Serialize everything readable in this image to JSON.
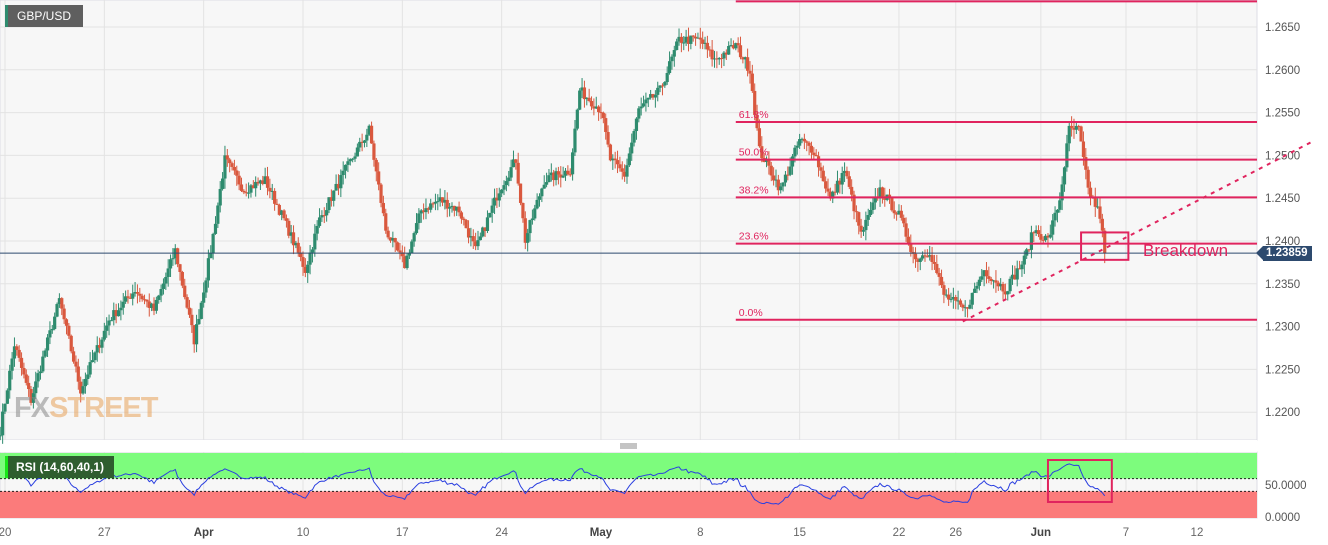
{
  "symbol": "GBP/USD",
  "colors": {
    "up": "#2e8b6e",
    "down": "#d9583e",
    "fib": "#e0245e",
    "price_line": "#2d4a6e",
    "rsi_line": "#2a3fe0",
    "rsi_over": "#7dfc7d",
    "rsi_under": "#fb7b7b"
  },
  "chart_data": {
    "type": "candlestick",
    "interval_hint": "4h",
    "y_ticks": [
      "1.2650",
      "1.2600",
      "1.2550",
      "1.2500",
      "1.2450",
      "1.2400",
      "1.2350",
      "1.2300",
      "1.2250",
      "1.2200"
    ],
    "ylim": [
      1.216,
      1.268
    ],
    "x_ticks": [
      {
        "label": "20",
        "date": "2023-03-20"
      },
      {
        "label": "27",
        "date": "2023-03-27"
      },
      {
        "label": "Apr",
        "date": "2023-04-03",
        "bold": true
      },
      {
        "label": "10",
        "date": "2023-04-10"
      },
      {
        "label": "17",
        "date": "2023-04-17"
      },
      {
        "label": "24",
        "date": "2023-04-24"
      },
      {
        "label": "May",
        "date": "2023-05-01",
        "bold": true
      },
      {
        "label": "8",
        "date": "2023-05-08"
      },
      {
        "label": "15",
        "date": "2023-05-15"
      },
      {
        "label": "22",
        "date": "2023-05-22"
      },
      {
        "label": "26",
        "date": "2023-05-26"
      },
      {
        "label": "Jun",
        "date": "2023-06-01",
        "bold": true
      },
      {
        "label": "7",
        "date": "2023-06-07"
      },
      {
        "label": "12",
        "date": "2023-06-12"
      }
    ],
    "price_path": [
      [
        "2023-03-19T16:00",
        1.2179
      ],
      [
        "2023-03-20T16:00",
        1.2279
      ],
      [
        "2023-03-21T20:00",
        1.2214
      ],
      [
        "2023-03-23T20:00",
        1.2331
      ],
      [
        "2023-03-25T08:00",
        1.2226
      ],
      [
        "2023-03-27T08:00",
        1.2308
      ],
      [
        "2023-03-29T04:00",
        1.2343
      ],
      [
        "2023-03-30T12:00",
        1.2319
      ],
      [
        "2023-04-01T00:00",
        1.2389
      ],
      [
        "2023-04-02T08:00",
        1.2284
      ],
      [
        "2023-04-03T12:00",
        1.2389
      ],
      [
        "2023-04-04T12:00",
        1.2495
      ],
      [
        "2023-04-05T20:00",
        1.246
      ],
      [
        "2023-04-07T08:00",
        1.2471
      ],
      [
        "2023-04-08T16:00",
        1.2425
      ],
      [
        "2023-04-10T04:00",
        1.2366
      ],
      [
        "2023-04-11T04:00",
        1.2425
      ],
      [
        "2023-04-13T00:00",
        1.2483
      ],
      [
        "2023-04-14T16:00",
        1.253
      ],
      [
        "2023-04-15T20:00",
        1.2413
      ],
      [
        "2023-04-17T04:00",
        1.2372
      ],
      [
        "2023-04-18T08:00",
        1.2436
      ],
      [
        "2023-04-19T16:00",
        1.2448
      ],
      [
        "2023-04-21T00:00",
        1.2436
      ],
      [
        "2023-04-22T04:00",
        1.2389
      ],
      [
        "2023-04-23T20:00",
        1.246
      ],
      [
        "2023-04-25T00:00",
        1.2495
      ],
      [
        "2023-04-25T16:00",
        1.2401
      ],
      [
        "2023-04-27T00:00",
        1.2471
      ],
      [
        "2023-04-28T20:00",
        1.2483
      ],
      [
        "2023-04-29T12:00",
        1.2576
      ],
      [
        "2023-05-01T00:00",
        1.2553
      ],
      [
        "2023-05-01T16:00",
        1.2495
      ],
      [
        "2023-05-02T16:00",
        1.2477
      ],
      [
        "2023-05-03T16:00",
        1.2553
      ],
      [
        "2023-05-05T04:00",
        1.2576
      ],
      [
        "2023-05-06T12:00",
        1.2635
      ],
      [
        "2023-05-08T00:00",
        1.2635
      ],
      [
        "2023-05-09T00:00",
        1.2611
      ],
      [
        "2023-05-10T12:00",
        1.2629
      ],
      [
        "2023-05-11T12:00",
        1.26
      ],
      [
        "2023-05-12T04:00",
        1.2506
      ],
      [
        "2023-05-13T16:00",
        1.246
      ],
      [
        "2023-05-15T00:00",
        1.2518
      ],
      [
        "2023-05-16T00:00",
        1.2506
      ],
      [
        "2023-05-17T04:00",
        1.2448
      ],
      [
        "2023-05-18T04:00",
        1.2483
      ],
      [
        "2023-05-19T08:00",
        1.2407
      ],
      [
        "2023-05-20T16:00",
        1.246
      ],
      [
        "2023-05-22T00:00",
        1.243
      ],
      [
        "2023-05-23T04:00",
        1.2378
      ],
      [
        "2023-05-24T04:00",
        1.2389
      ],
      [
        "2023-05-25T04:00",
        1.2337
      ],
      [
        "2023-05-26T16:00",
        1.2319
      ],
      [
        "2023-05-28T00:00",
        1.2366
      ],
      [
        "2023-05-29T12:00",
        1.2343
      ],
      [
        "2023-05-30T20:00",
        1.2378
      ],
      [
        "2023-05-31T12:00",
        1.2413
      ],
      [
        "2023-06-01T12:00",
        1.2401
      ],
      [
        "2023-06-02T08:00",
        1.2448
      ],
      [
        "2023-06-03T00:00",
        1.253
      ],
      [
        "2023-06-03T16:00",
        1.253
      ],
      [
        "2023-06-04T08:00",
        1.246
      ],
      [
        "2023-06-05T04:00",
        1.243
      ],
      [
        "2023-06-05T12:00",
        1.23859
      ]
    ],
    "last_price": "1.23859",
    "fibonacci": {
      "start_date": "2023-05-10T12:00",
      "levels": [
        {
          "label": "",
          "price": 1.268
        },
        {
          "label": "61.8%",
          "price": 1.2539
        },
        {
          "label": "50.0%",
          "price": 1.2495
        },
        {
          "label": "38.2%",
          "price": 1.2451
        },
        {
          "label": "23.6%",
          "price": 1.2397
        },
        {
          "label": "0.0%",
          "price": 1.2308
        }
      ]
    },
    "trendline": {
      "style": "dashed",
      "from": [
        "2023-05-26T12:00",
        1.2306
      ],
      "to": [
        "2023-06-20T00:00",
        1.2515
      ]
    },
    "annotation": {
      "text": "Breakdown",
      "box": {
        "from": [
          "2023-06-03T20:00",
          1.241
        ],
        "to": [
          "2023-06-07T04:00",
          1.2378
        ]
      }
    },
    "rsi": {
      "label": "RSI (14,60,40,1)",
      "overbought": 60,
      "oversold": 40,
      "y_ticks": [
        "50.0000",
        "0.0000"
      ],
      "highlight_box": {
        "from": "2023-06-01T12:00",
        "to": "2023-06-06T00:00"
      }
    }
  },
  "watermark": {
    "part1": "FX",
    "part2": "STREET"
  }
}
